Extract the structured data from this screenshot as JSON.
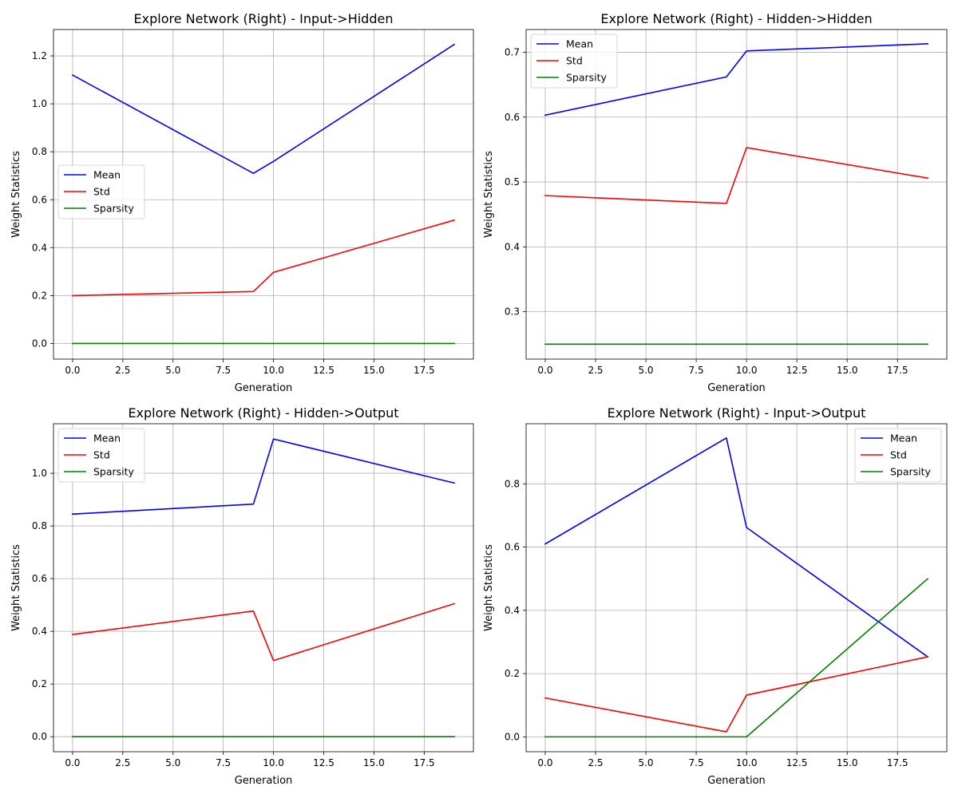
{
  "chart_data": [
    {
      "type": "line",
      "title": "Explore Network (Right) - Input->Hidden",
      "xlabel": "Generation",
      "ylabel": "Weight Statistics",
      "xlim": [
        -0.95,
        19.95
      ],
      "ylim": [
        -0.065,
        1.31
      ],
      "xticks": [
        0,
        2.5,
        5,
        7.5,
        10,
        12.5,
        15,
        17.5
      ],
      "xtick_labels": [
        "0.0",
        "2.5",
        "5.0",
        "7.5",
        "10.0",
        "12.5",
        "15.0",
        "17.5"
      ],
      "yticks": [
        0,
        0.2,
        0.4,
        0.6,
        0.8,
        1.0,
        1.2
      ],
      "ytick_labels": [
        "0.0",
        "0.2",
        "0.4",
        "0.6",
        "0.8",
        "1.0",
        "1.2"
      ],
      "grid": true,
      "legend_position": "center-left",
      "series": [
        {
          "name": "Mean",
          "color": "#0000ff",
          "x": [
            0,
            9,
            10,
            19
          ],
          "y": [
            1.12,
            0.71,
            0.76,
            1.248
          ]
        },
        {
          "name": "Std",
          "color": "#ff0000",
          "x": [
            0,
            9,
            10,
            19
          ],
          "y": [
            0.2,
            0.217,
            0.297,
            0.515
          ]
        },
        {
          "name": "Sparsity",
          "color": "#008000",
          "x": [
            0,
            9,
            10,
            19
          ],
          "y": [
            0.0,
            0.0,
            0.0,
            0.0
          ]
        }
      ]
    },
    {
      "type": "line",
      "title": "Explore Network (Right) - Hidden->Hidden",
      "xlabel": "Generation",
      "ylabel": "Weight Statistics",
      "xlim": [
        -0.95,
        19.95
      ],
      "ylim": [
        0.227,
        0.735
      ],
      "xticks": [
        0,
        2.5,
        5,
        7.5,
        10,
        12.5,
        15,
        17.5
      ],
      "xtick_labels": [
        "0.0",
        "2.5",
        "5.0",
        "7.5",
        "10.0",
        "12.5",
        "15.0",
        "17.5"
      ],
      "yticks": [
        0.3,
        0.4,
        0.5,
        0.6,
        0.7
      ],
      "ytick_labels": [
        "0.3",
        "0.4",
        "0.5",
        "0.6",
        "0.7"
      ],
      "grid": true,
      "legend_position": "upper-left",
      "series": [
        {
          "name": "Mean",
          "color": "#0000ff",
          "x": [
            0,
            9,
            10,
            19
          ],
          "y": [
            0.603,
            0.662,
            0.702,
            0.713
          ]
        },
        {
          "name": "Std",
          "color": "#ff0000",
          "x": [
            0,
            9,
            10,
            19
          ],
          "y": [
            0.479,
            0.467,
            0.553,
            0.506
          ]
        },
        {
          "name": "Sparsity",
          "color": "#008000",
          "x": [
            0,
            9,
            10,
            19
          ],
          "y": [
            0.25,
            0.25,
            0.25,
            0.25
          ]
        }
      ]
    },
    {
      "type": "line",
      "title": "Explore Network (Right) - Hidden->Output",
      "xlabel": "Generation",
      "ylabel": "Weight Statistics",
      "xlim": [
        -0.95,
        19.95
      ],
      "ylim": [
        -0.057,
        1.188
      ],
      "xticks": [
        0,
        2.5,
        5,
        7.5,
        10,
        12.5,
        15,
        17.5
      ],
      "xtick_labels": [
        "0.0",
        "2.5",
        "5.0",
        "7.5",
        "10.0",
        "12.5",
        "15.0",
        "17.5"
      ],
      "yticks": [
        0,
        0.2,
        0.4,
        0.6,
        0.8,
        1.0
      ],
      "ytick_labels": [
        "0.0",
        "0.2",
        "0.4",
        "0.6",
        "0.8",
        "1.0"
      ],
      "grid": true,
      "legend_position": "upper-left",
      "series": [
        {
          "name": "Mean",
          "color": "#0000ff",
          "x": [
            0,
            9,
            10,
            19
          ],
          "y": [
            0.845,
            0.883,
            1.13,
            0.963
          ]
        },
        {
          "name": "Std",
          "color": "#ff0000",
          "x": [
            0,
            9,
            10,
            19
          ],
          "y": [
            0.388,
            0.477,
            0.289,
            0.505
          ]
        },
        {
          "name": "Sparsity",
          "color": "#008000",
          "x": [
            0,
            9,
            10,
            19
          ],
          "y": [
            0.0,
            0.0,
            0.0,
            0.0
          ]
        }
      ]
    },
    {
      "type": "line",
      "title": "Explore Network (Right) - Input->Output",
      "xlabel": "Generation",
      "ylabel": "Weight Statistics",
      "xlim": [
        -0.95,
        19.95
      ],
      "ylim": [
        -0.047,
        0.99
      ],
      "xticks": [
        0,
        2.5,
        5,
        7.5,
        10,
        12.5,
        15,
        17.5
      ],
      "xtick_labels": [
        "0.0",
        "2.5",
        "5.0",
        "7.5",
        "10.0",
        "12.5",
        "15.0",
        "17.5"
      ],
      "yticks": [
        0,
        0.2,
        0.4,
        0.6,
        0.8
      ],
      "ytick_labels": [
        "0.0",
        "0.2",
        "0.4",
        "0.6",
        "0.8"
      ],
      "grid": true,
      "legend_position": "upper-right",
      "series": [
        {
          "name": "Mean",
          "color": "#0000ff",
          "x": [
            0,
            9,
            10,
            19
          ],
          "y": [
            0.61,
            0.945,
            0.662,
            0.253
          ]
        },
        {
          "name": "Std",
          "color": "#ff0000",
          "x": [
            0,
            9,
            10,
            19
          ],
          "y": [
            0.123,
            0.016,
            0.132,
            0.253
          ]
        },
        {
          "name": "Sparsity",
          "color": "#008000",
          "x": [
            0,
            9,
            10,
            19
          ],
          "y": [
            0.0,
            0.0,
            0.0,
            0.5
          ]
        }
      ]
    }
  ]
}
